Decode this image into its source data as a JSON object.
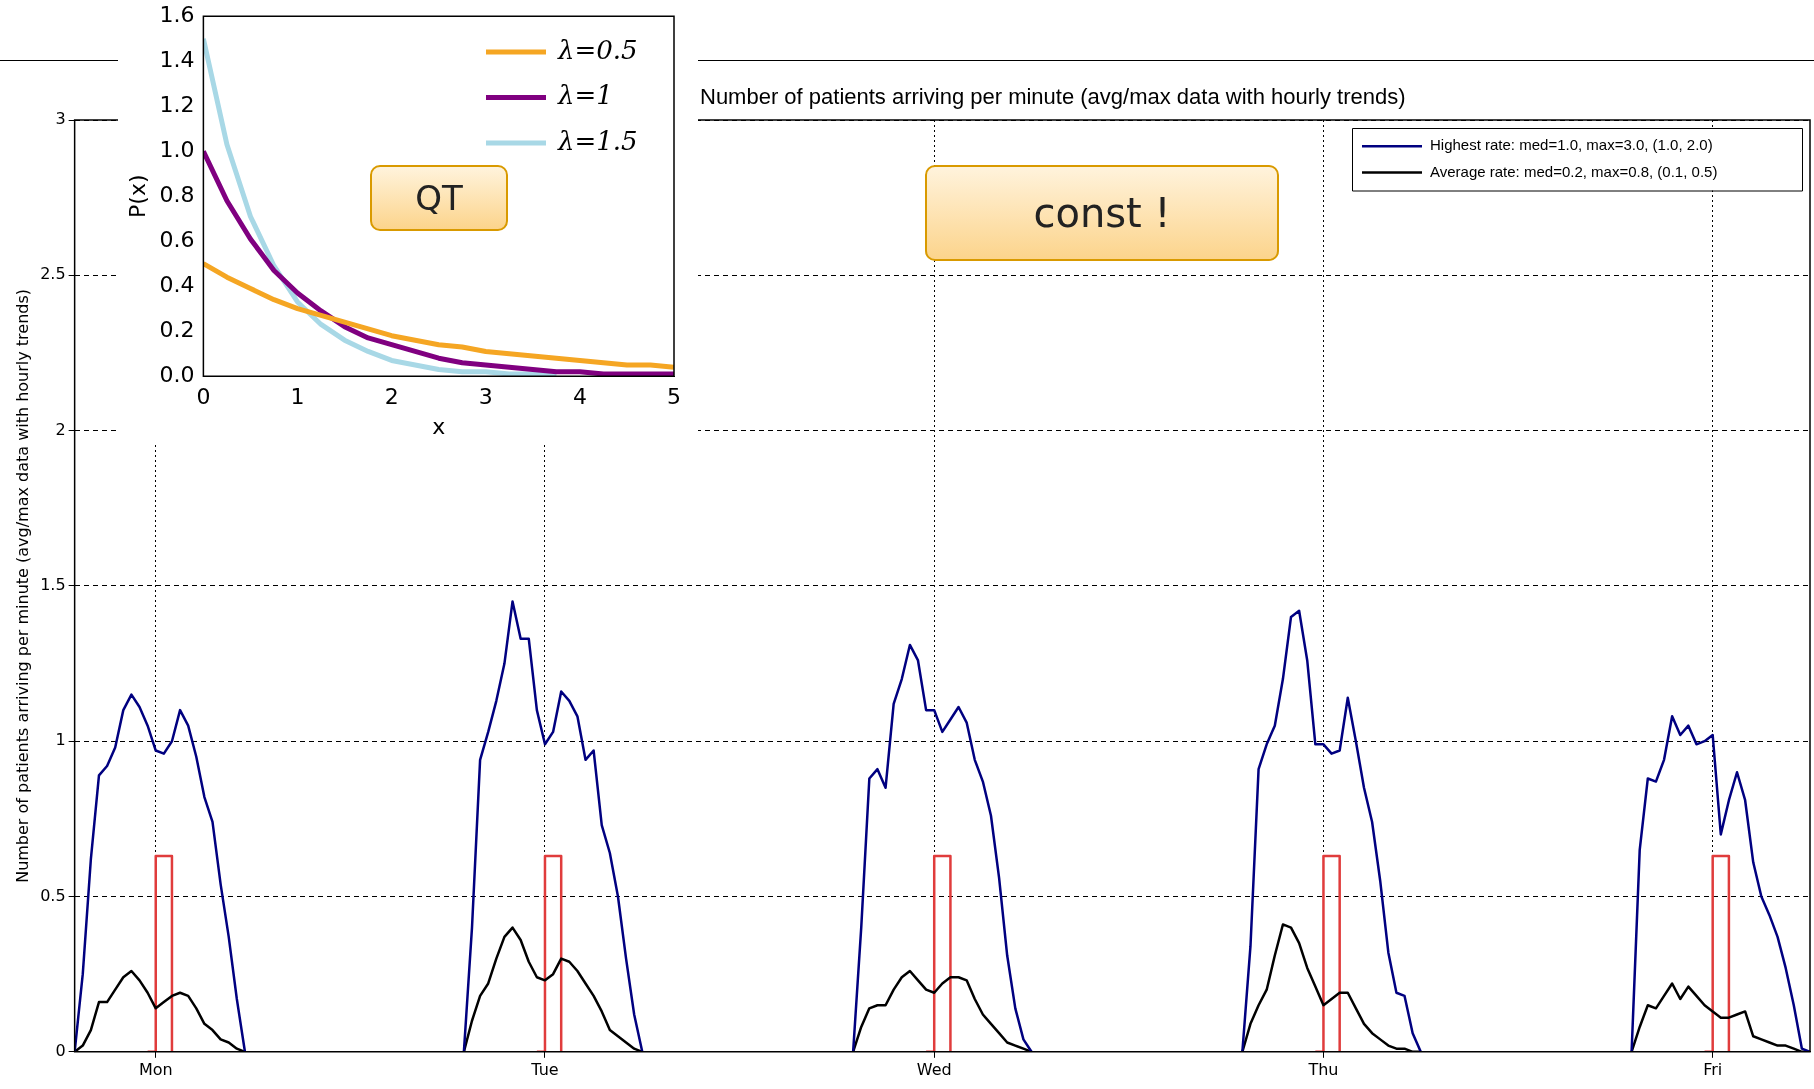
{
  "chart_data": [
    {
      "type": "line",
      "title": "Number of patients arriving per minute (avg/max data with hourly trends)",
      "ylabel": "Number of patients arriving per minute (avg/max data with hourly trends)",
      "categories": [
        null,
        null,
        null,
        null,
        null,
        null,
        null,
        null,
        null,
        null,
        "Mon",
        null,
        null,
        null,
        null,
        null,
        null,
        null,
        null,
        null,
        null,
        null,
        null,
        null,
        null,
        null,
        null,
        null,
        null,
        null,
        null,
        null,
        null,
        null,
        null,
        null,
        null,
        null,
        null,
        null,
        null,
        null,
        null,
        null,
        null,
        null,
        null,
        null,
        null,
        null,
        null,
        null,
        null,
        null,
        null,
        null,
        null,
        null,
        "Tue",
        null,
        null,
        null,
        null,
        null,
        null,
        null,
        null,
        null,
        null,
        null,
        null,
        null,
        null,
        null,
        null,
        null,
        null,
        null,
        null,
        null,
        null,
        null,
        null,
        null,
        null,
        null,
        null,
        null,
        null,
        null,
        null,
        null,
        null,
        null,
        null,
        null,
        null,
        null,
        null,
        null,
        null,
        null,
        null,
        null,
        null,
        null,
        "Wed",
        null,
        null,
        null,
        null,
        null,
        null,
        null,
        null,
        null,
        null,
        null,
        null,
        null,
        null,
        null,
        null,
        null,
        null,
        null,
        null,
        null,
        null,
        null,
        null,
        null,
        null,
        null,
        null,
        null,
        null,
        null,
        null,
        null,
        null,
        null,
        null,
        null,
        null,
        null,
        null,
        null,
        null,
        null,
        null,
        null,
        null,
        null,
        "Thu",
        null,
        null,
        null,
        null,
        null,
        null,
        null,
        null,
        null,
        null,
        null,
        null,
        null,
        null,
        null,
        null,
        null,
        null,
        null,
        null,
        null,
        null,
        null,
        null,
        null,
        null,
        null,
        null,
        null,
        null,
        null,
        null,
        null,
        null,
        null,
        null,
        null,
        null,
        null,
        null,
        null,
        null,
        null,
        null,
        null,
        null,
        null,
        "Fri",
        null,
        null,
        null,
        null,
        null,
        null,
        null,
        null,
        null,
        null,
        null,
        null
      ],
      "ylim": [
        0,
        3
      ],
      "yticks": [
        0,
        0.5,
        1,
        1.5,
        2,
        2.5,
        3
      ],
      "grid": true,
      "legend": "top right",
      "annotations": [
        "const !"
      ],
      "series": [
        {
          "name": "Highest rate: med=1.0, max=3.0, (1.0, 2.0)",
          "color": "#000080",
          "values": [
            0,
            0.25,
            0.62,
            0.89,
            0.92,
            0.98,
            1.1,
            1.15,
            1.11,
            1.05,
            0.97,
            0.96,
            1.0,
            1.1,
            1.05,
            0.95,
            0.82,
            0.74,
            0.54,
            0.37,
            0.17,
            0,
            null,
            null,
            null,
            null,
            null,
            null,
            null,
            null,
            null,
            null,
            null,
            null,
            null,
            null,
            null,
            null,
            null,
            null,
            null,
            null,
            null,
            null,
            null,
            null,
            null,
            null,
            0,
            0.4,
            0.94,
            1.03,
            1.13,
            1.25,
            1.45,
            1.33,
            1.33,
            1.1,
            0.99,
            1.03,
            1.16,
            1.13,
            1.08,
            0.94,
            0.97,
            0.73,
            0.64,
            0.5,
            0.3,
            0.12,
            0,
            null,
            null,
            null,
            null,
            null,
            null,
            null,
            null,
            null,
            null,
            null,
            null,
            null,
            null,
            null,
            null,
            null,
            null,
            null,
            null,
            null,
            null,
            null,
            null,
            null,
            0,
            0.4,
            0.88,
            0.91,
            0.85,
            1.12,
            1.2,
            1.31,
            1.26,
            1.1,
            1.1,
            1.03,
            1.07,
            1.11,
            1.06,
            0.94,
            0.87,
            0.76,
            0.56,
            0.31,
            0.14,
            0.04,
            0,
            null,
            null,
            null,
            null,
            null,
            null,
            null,
            null,
            null,
            null,
            null,
            null,
            null,
            null,
            null,
            null,
            null,
            null,
            null,
            null,
            null,
            null,
            null,
            null,
            null,
            0,
            0.34,
            0.91,
            0.99,
            1.05,
            1.2,
            1.4,
            1.42,
            1.26,
            0.99,
            0.99,
            0.96,
            0.97,
            1.14,
            1.0,
            0.85,
            0.74,
            0.55,
            0.32,
            0.19,
            0.18,
            0.06,
            0,
            null,
            null,
            null,
            null,
            null,
            null,
            null,
            null,
            null,
            null,
            null,
            null,
            null,
            null,
            null,
            null,
            null,
            null,
            null,
            null,
            null,
            null,
            null,
            null,
            null,
            0,
            0.65,
            0.88,
            0.87,
            0.94,
            1.08,
            1.02,
            1.05,
            0.99,
            1.0,
            1.02,
            0.7,
            0.81,
            0.9,
            0.81,
            0.61,
            0.5,
            0.44,
            0.37,
            0.27,
            0.15,
            0.01,
            0
          ]
        },
        {
          "name": "Average rate: med=0.2, max=0.8, (0.1, 0.5)",
          "color": "#000000",
          "values": [
            0,
            0.02,
            0.07,
            0.16,
            0.16,
            0.2,
            0.24,
            0.26,
            0.23,
            0.19,
            0.14,
            0.16,
            0.18,
            0.19,
            0.18,
            0.14,
            0.09,
            0.07,
            0.04,
            0.03,
            0.01,
            0,
            null,
            null,
            null,
            null,
            null,
            null,
            null,
            null,
            null,
            null,
            null,
            null,
            null,
            null,
            null,
            null,
            null,
            null,
            null,
            null,
            null,
            null,
            null,
            null,
            null,
            null,
            0,
            0.1,
            0.18,
            0.22,
            0.3,
            0.37,
            0.4,
            0.36,
            0.29,
            0.24,
            0.23,
            0.25,
            0.3,
            0.29,
            0.26,
            0.22,
            0.18,
            0.13,
            0.07,
            0.05,
            0.03,
            0.01,
            0,
            null,
            null,
            null,
            null,
            null,
            null,
            null,
            null,
            null,
            null,
            null,
            null,
            null,
            null,
            null,
            null,
            null,
            null,
            null,
            null,
            null,
            null,
            null,
            null,
            null,
            0,
            0.08,
            0.14,
            0.15,
            0.15,
            0.2,
            0.24,
            0.26,
            0.23,
            0.2,
            0.19,
            0.22,
            0.24,
            0.24,
            0.23,
            0.17,
            0.12,
            0.09,
            0.06,
            0.03,
            0.02,
            0.01,
            0,
            null,
            null,
            null,
            null,
            null,
            null,
            null,
            null,
            null,
            null,
            null,
            null,
            null,
            null,
            null,
            null,
            null,
            null,
            null,
            null,
            null,
            null,
            null,
            null,
            null,
            0,
            0.09,
            0.15,
            0.2,
            0.31,
            0.41,
            0.4,
            0.35,
            0.27,
            0.21,
            0.15,
            0.17,
            0.19,
            0.19,
            0.14,
            0.09,
            0.06,
            0.04,
            0.02,
            0.01,
            0.01,
            0,
            0,
            null,
            null,
            null,
            null,
            null,
            null,
            null,
            null,
            null,
            null,
            null,
            null,
            null,
            null,
            null,
            null,
            null,
            null,
            null,
            null,
            null,
            null,
            null,
            null,
            null,
            0,
            0.08,
            0.15,
            0.14,
            0.18,
            0.22,
            0.17,
            0.21,
            0.18,
            0.15,
            0.13,
            0.11,
            0.11,
            0.12,
            0.13,
            0.05,
            0.04,
            0.03,
            0.02,
            0.02,
            0.01,
            0,
            0
          ]
        },
        {
          "type": "step",
          "color": "#e03c3c",
          "values": [
            null,
            null,
            null,
            null,
            null,
            null,
            null,
            null,
            null,
            0,
            0.63,
            0.63,
            0,
            null,
            null,
            null,
            null,
            null,
            null,
            null,
            null,
            null,
            null,
            null,
            null,
            null,
            null,
            null,
            null,
            null,
            null,
            null,
            null,
            null,
            null,
            null,
            null,
            null,
            null,
            null,
            null,
            null,
            null,
            null,
            null,
            null,
            null,
            null,
            null,
            null,
            null,
            null,
            null,
            null,
            null,
            null,
            null,
            0,
            0.63,
            0.63,
            0,
            null,
            null,
            null,
            null,
            null,
            null,
            null,
            null,
            null,
            null,
            null,
            null,
            null,
            null,
            null,
            null,
            null,
            null,
            null,
            null,
            null,
            null,
            null,
            null,
            null,
            null,
            null,
            null,
            null,
            null,
            null,
            null,
            null,
            null,
            null,
            null,
            null,
            null,
            null,
            null,
            null,
            null,
            null,
            null,
            0,
            0.63,
            0.63,
            0,
            null,
            null,
            null,
            null,
            null,
            null,
            null,
            null,
            null,
            null,
            null,
            null,
            null,
            null,
            null,
            null,
            null,
            null,
            null,
            null,
            null,
            null,
            null,
            null,
            null,
            null,
            null,
            null,
            null,
            null,
            null,
            null,
            null,
            null,
            null,
            null,
            null,
            null,
            null,
            null,
            null,
            null,
            null,
            null,
            0,
            0.63,
            0.63,
            0,
            null,
            null,
            null,
            null,
            null,
            null,
            null,
            null,
            null,
            null,
            null,
            null,
            null,
            null,
            null,
            null,
            null,
            null,
            null,
            null,
            null,
            null,
            null,
            null,
            null,
            null,
            null,
            null,
            null,
            null,
            null,
            null,
            null,
            null,
            null,
            null,
            null,
            null,
            null,
            null,
            null,
            null,
            null,
            null,
            0,
            0.63,
            0.63,
            0,
            null,
            null,
            null,
            null,
            null,
            null,
            null,
            null,
            null,
            null
          ]
        }
      ]
    },
    {
      "type": "line",
      "xlabel": "x",
      "ylabel": "P(x)",
      "xlim": [
        0,
        5
      ],
      "xticks": [
        0,
        1,
        2,
        3,
        4,
        5
      ],
      "ylim": [
        0,
        1.6
      ],
      "yticks": [
        {
          "value": 0,
          "label": "0.0"
        },
        {
          "value": 0.2,
          "label": "0.2"
        },
        {
          "value": 0.4,
          "label": "0.4"
        },
        {
          "value": 0.6,
          "label": "0.6"
        },
        {
          "value": 0.8,
          "label": "0.8"
        },
        {
          "value": 1,
          "label": "1.0"
        },
        {
          "value": 1.2,
          "label": "1.2"
        },
        {
          "value": 1.4,
          "label": "1.4"
        },
        {
          "value": 1.6,
          "label": "1.6"
        }
      ],
      "legend": "top right",
      "annotations": [
        "QT"
      ],
      "x": [
        0,
        0.25,
        0.5,
        0.75,
        1,
        1.25,
        1.5,
        1.75,
        2,
        2.25,
        2.5,
        2.75,
        3,
        3.25,
        3.5,
        3.75,
        4,
        4.25,
        4.5,
        4.75,
        5
      ],
      "series": [
        {
          "name": "λ=0.5",
          "color": "#f5a623",
          "values": [
            0.5,
            0.44,
            0.39,
            0.34,
            0.3,
            0.27,
            0.24,
            0.21,
            0.18,
            0.16,
            0.14,
            0.13,
            0.11,
            0.1,
            0.09,
            0.08,
            0.07,
            0.06,
            0.05,
            0.05,
            0.04
          ]
        },
        {
          "name": "λ=1",
          "color": "#800080",
          "values": [
            1.0,
            0.78,
            0.61,
            0.47,
            0.37,
            0.29,
            0.22,
            0.17,
            0.14,
            0.11,
            0.08,
            0.06,
            0.05,
            0.04,
            0.03,
            0.02,
            0.02,
            0.01,
            0.01,
            0.01,
            0.01
          ]
        },
        {
          "name": "λ=1.5",
          "color": "#a8d8e6",
          "values": [
            1.5,
            1.03,
            0.71,
            0.49,
            0.33,
            0.23,
            0.16,
            0.11,
            0.07,
            0.05,
            0.03,
            0.02,
            0.02,
            0.01,
            0.01,
            0,
            null,
            null,
            null,
            null,
            null
          ]
        }
      ]
    }
  ]
}
